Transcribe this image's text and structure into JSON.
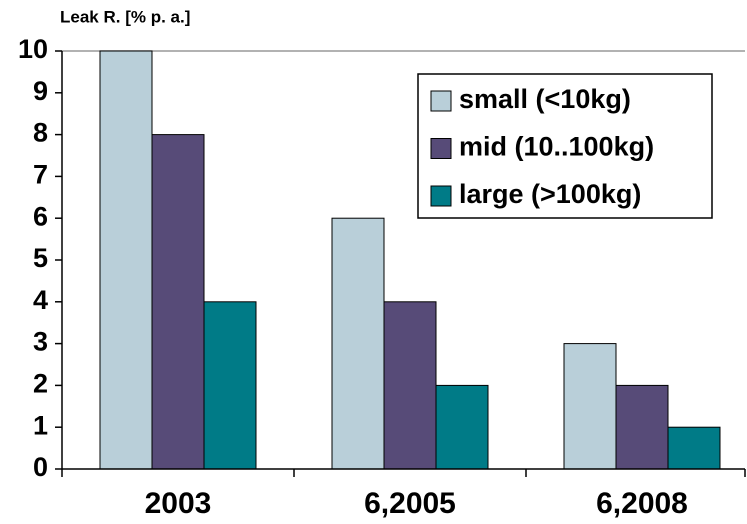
{
  "chart_data": {
    "type": "bar",
    "ylabel": "Leak R. [% p. a.]",
    "categories": [
      "2003",
      "6,2005",
      "6,2008"
    ],
    "series": [
      {
        "name": "small (<10kg)",
        "color": "#b9cfd9",
        "values": [
          10,
          6,
          3
        ]
      },
      {
        "name": "mid (10..100kg)",
        "color": "#574b78",
        "values": [
          8,
          4,
          2
        ]
      },
      {
        "name": "large (>100kg)",
        "color": "#007b87",
        "values": [
          4,
          2,
          1
        ]
      }
    ],
    "ylim": [
      0,
      10
    ],
    "yticks": [
      0,
      1,
      2,
      3,
      4,
      5,
      6,
      7,
      8,
      9,
      10
    ],
    "grid": true,
    "legend": "upper right"
  }
}
